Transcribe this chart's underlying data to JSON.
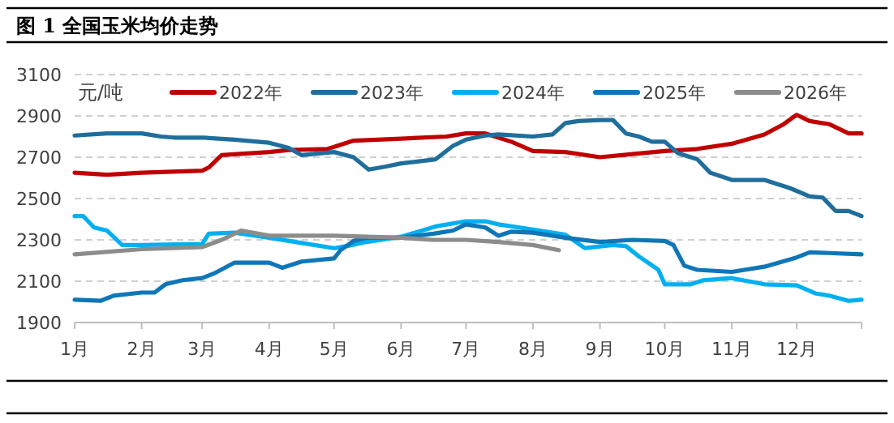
{
  "chart_data": {
    "type": "line",
    "title": "图 1  全国玉米均价走势",
    "ylabel": "元/吨",
    "xlim": [
      "--01-01",
      "--12-31"
    ],
    "ylim": [
      1900,
      3100
    ],
    "xticks": [
      {
        "value": "--01-01",
        "label": "1月"
      },
      {
        "value": "--02-01",
        "label": "2月"
      },
      {
        "value": "--03-01",
        "label": "3月"
      },
      {
        "value": "--04-01",
        "label": "4月"
      },
      {
        "value": "--05-01",
        "label": "5月"
      },
      {
        "value": "--06-01",
        "label": "6月"
      },
      {
        "value": "--07-01",
        "label": "7月"
      },
      {
        "value": "--08-01",
        "label": "8月"
      },
      {
        "value": "--09-01",
        "label": "9月"
      },
      {
        "value": "--10-01",
        "label": "10月"
      },
      {
        "value": "--11-01",
        "label": "11月"
      },
      {
        "value": "--12-01",
        "label": "12月"
      },
      {
        "value": "--12-31",
        "label": null
      }
    ],
    "yticks": [
      1900,
      2100,
      2300,
      2500,
      2700,
      2900,
      3100
    ],
    "grid": "y",
    "legend": "top right",
    "marker": "none",
    "line_style": "solid",
    "series": [
      {
        "name": "2022年",
        "color": "#c00000",
        "x": [
          "--01-01",
          "--01-16",
          "--02-01",
          "--03-01",
          "--03-04",
          "--03-10",
          "--04-01",
          "--04-10",
          "--04-28",
          "--05-01",
          "--05-10",
          "--06-01",
          "--06-22",
          "--07-01",
          "--07-10",
          "--07-22",
          "--08-01",
          "--08-16",
          "--09-01",
          "--09-16",
          "--10-01",
          "--10-16",
          "--11-01",
          "--11-16",
          "--11-25",
          "--12-01",
          "--12-07",
          "--12-16",
          "--12-25",
          "--12-31"
        ],
        "values": [
          2625,
          2615,
          2625,
          2635,
          2650,
          2710,
          2725,
          2735,
          2740,
          2750,
          2780,
          2790,
          2800,
          2815,
          2815,
          2775,
          2730,
          2725,
          2700,
          2715,
          2730,
          2740,
          2765,
          2810,
          2860,
          2905,
          2875,
          2860,
          2815,
          2815
        ]
      },
      {
        "name": "2023年",
        "color": "#1f6e9c",
        "x": [
          "--01-01",
          "--01-16",
          "--02-01",
          "--02-10",
          "--02-16",
          "--03-01",
          "--03-16",
          "--04-01",
          "--04-10",
          "--04-16",
          "--05-01",
          "--05-10",
          "--05-17",
          "--05-25",
          "--06-01",
          "--06-17",
          "--06-25",
          "--07-01",
          "--07-10",
          "--07-16",
          "--08-01",
          "--08-10",
          "--08-16",
          "--08-22",
          "--09-01",
          "--09-07",
          "--09-13",
          "--09-19",
          "--09-25",
          "--10-01",
          "--10-07",
          "--10-16",
          "--10-22",
          "--11-01",
          "--11-16",
          "--11-28",
          "--12-07",
          "--12-13",
          "--12-19",
          "--12-25",
          "--12-31"
        ],
        "values": [
          2805,
          2815,
          2815,
          2800,
          2795,
          2795,
          2785,
          2770,
          2745,
          2710,
          2725,
          2700,
          2640,
          2655,
          2670,
          2690,
          2755,
          2785,
          2805,
          2810,
          2800,
          2810,
          2865,
          2875,
          2880,
          2880,
          2815,
          2800,
          2775,
          2775,
          2720,
          2690,
          2625,
          2590,
          2590,
          2550,
          2510,
          2505,
          2440,
          2440,
          2415
        ]
      },
      {
        "name": "2024年",
        "color": "#00b0f0",
        "x": [
          "--01-01",
          "--01-05",
          "--01-10",
          "--01-16",
          "--01-23",
          "--02-01",
          "--03-01",
          "--03-04",
          "--03-16",
          "--04-01",
          "--04-16",
          "--05-01",
          "--05-07",
          "--05-16",
          "--06-01",
          "--06-17",
          "--07-01",
          "--07-10",
          "--07-16",
          "--08-01",
          "--08-16",
          "--08-25",
          "--09-07",
          "--09-13",
          "--09-19",
          "--09-28",
          "--10-01",
          "--10-13",
          "--10-19",
          "--11-01",
          "--11-16",
          "--12-01",
          "--12-10",
          "--12-16",
          "--12-25",
          "--12-31"
        ],
        "values": [
          2415,
          2415,
          2360,
          2345,
          2275,
          2275,
          2280,
          2330,
          2335,
          2310,
          2285,
          2260,
          2270,
          2290,
          2315,
          2365,
          2390,
          2390,
          2375,
          2350,
          2325,
          2260,
          2275,
          2270,
          2220,
          2155,
          2085,
          2085,
          2105,
          2115,
          2085,
          2080,
          2040,
          2030,
          2005,
          2010
        ]
      },
      {
        "name": "2025年",
        "color": "#0f76b8",
        "x": [
          "--01-01",
          "--01-13",
          "--01-19",
          "--02-01",
          "--02-07",
          "--02-12",
          "--02-20",
          "--03-01",
          "--03-07",
          "--03-16",
          "--04-01",
          "--04-07",
          "--04-16",
          "--05-01",
          "--05-04",
          "--05-10",
          "--05-16",
          "--06-01",
          "--06-16",
          "--06-25",
          "--07-01",
          "--07-10",
          "--07-16",
          "--07-22",
          "--08-01",
          "--08-16",
          "--09-01",
          "--09-16",
          "--10-01",
          "--10-05",
          "--10-10",
          "--10-16",
          "--11-01",
          "--11-16",
          "--12-01",
          "--12-07",
          "--12-31"
        ],
        "values": [
          2010,
          2005,
          2030,
          2045,
          2045,
          2085,
          2105,
          2115,
          2140,
          2190,
          2190,
          2165,
          2195,
          2210,
          2250,
          2295,
          2310,
          2310,
          2330,
          2345,
          2375,
          2360,
          2320,
          2340,
          2335,
          2310,
          2290,
          2300,
          2295,
          2275,
          2175,
          2155,
          2145,
          2170,
          2215,
          2240,
          2230
        ]
      },
      {
        "name": "2026年",
        "color": "#8c8c8c",
        "x": [
          "--01-01",
          "--02-01",
          "--03-01",
          "--03-10",
          "--03-19",
          "--04-01",
          "--05-01",
          "--06-01",
          "--06-16",
          "--07-01",
          "--07-16",
          "--08-01",
          "--08-13"
        ],
        "values": [
          2230,
          2255,
          2265,
          2300,
          2345,
          2320,
          2320,
          2310,
          2300,
          2300,
          2290,
          2275,
          2250
        ]
      }
    ]
  }
}
